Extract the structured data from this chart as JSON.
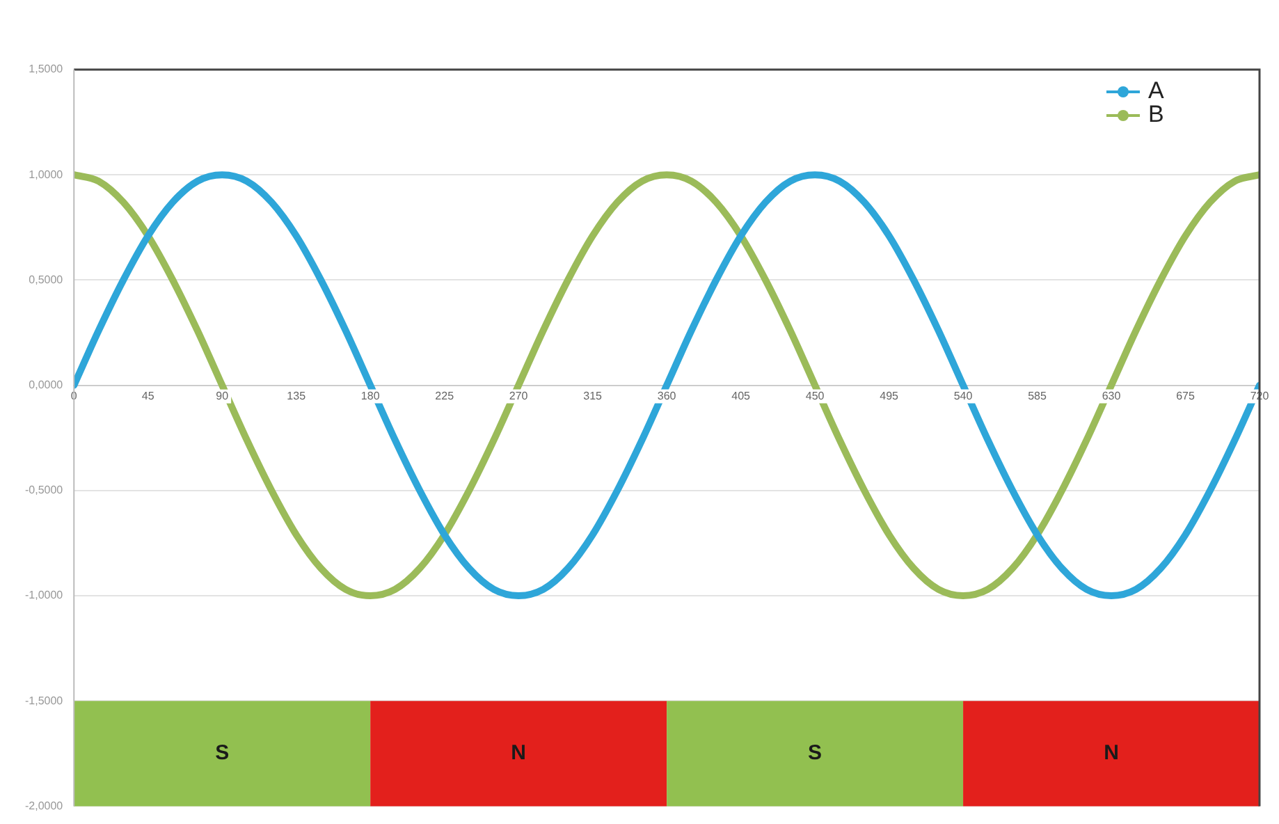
{
  "chart_data": {
    "type": "line",
    "x": [
      0,
      15,
      30,
      45,
      60,
      75,
      90,
      105,
      120,
      135,
      150,
      165,
      180,
      195,
      210,
      225,
      240,
      255,
      270,
      285,
      300,
      315,
      330,
      345,
      360,
      375,
      390,
      405,
      420,
      435,
      450,
      465,
      480,
      495,
      510,
      525,
      540,
      555,
      570,
      585,
      600,
      615,
      630,
      645,
      660,
      675,
      690,
      705,
      720
    ],
    "series": [
      {
        "name": "A",
        "color": "#2ea6d9",
        "values": [
          0,
          0.26,
          0.5,
          0.71,
          0.87,
          0.97,
          1,
          0.97,
          0.87,
          0.71,
          0.5,
          0.26,
          0,
          -0.26,
          -0.5,
          -0.71,
          -0.87,
          -0.97,
          -1,
          -0.97,
          -0.87,
          -0.71,
          -0.5,
          -0.26,
          0,
          0.26,
          0.5,
          0.71,
          0.87,
          0.97,
          1,
          0.97,
          0.87,
          0.71,
          0.5,
          0.26,
          0,
          -0.26,
          -0.5,
          -0.71,
          -0.87,
          -0.97,
          -1,
          -0.97,
          -0.87,
          -0.71,
          -0.5,
          -0.26,
          0
        ]
      },
      {
        "name": "B",
        "color": "#9bbb59",
        "values": [
          1,
          0.97,
          0.87,
          0.71,
          0.5,
          0.26,
          0,
          -0.26,
          -0.5,
          -0.71,
          -0.87,
          -0.97,
          -1,
          -0.97,
          -0.87,
          -0.71,
          -0.5,
          -0.26,
          0,
          0.26,
          0.5,
          0.71,
          0.87,
          0.97,
          1,
          0.97,
          0.87,
          0.71,
          0.5,
          0.26,
          0,
          -0.26,
          -0.5,
          -0.71,
          -0.87,
          -0.97,
          -1,
          -0.97,
          -0.87,
          -0.71,
          -0.5,
          -0.26,
          0,
          0.26,
          0.5,
          0.71,
          0.87,
          0.97,
          1
        ]
      }
    ],
    "xlim": [
      0,
      720
    ],
    "xticks": [
      0,
      45,
      90,
      135,
      180,
      225,
      270,
      315,
      360,
      405,
      450,
      495,
      540,
      585,
      630,
      675,
      720
    ],
    "ylim": [
      -2,
      1.5
    ],
    "yticks": [
      {
        "value": -2,
        "label": "-2,0000"
      },
      {
        "value": -1.5,
        "label": "-1,5000"
      },
      {
        "value": -1,
        "label": "-1,0000"
      },
      {
        "value": -0.5,
        "label": "-0,5000"
      },
      {
        "value": 0,
        "label": "0,0000"
      },
      {
        "value": 0.5,
        "label": "0,5000"
      },
      {
        "value": 1,
        "label": "1,0000"
      },
      {
        "value": 1.5,
        "label": "1,5000"
      }
    ],
    "bands": [
      {
        "axis": "x",
        "from": 0,
        "to": 180,
        "label": "S",
        "color": "#92c050"
      },
      {
        "axis": "x",
        "from": 180,
        "to": 360,
        "label": "N",
        "color": "#e3201c"
      },
      {
        "axis": "x",
        "from": 360,
        "to": 540,
        "label": "S",
        "color": "#92c050"
      },
      {
        "axis": "x",
        "from": 540,
        "to": 720,
        "label": "N",
        "color": "#e3201c"
      }
    ],
    "grid": "y",
    "legend": "top right",
    "marker": "none",
    "line_style": "solid"
  }
}
